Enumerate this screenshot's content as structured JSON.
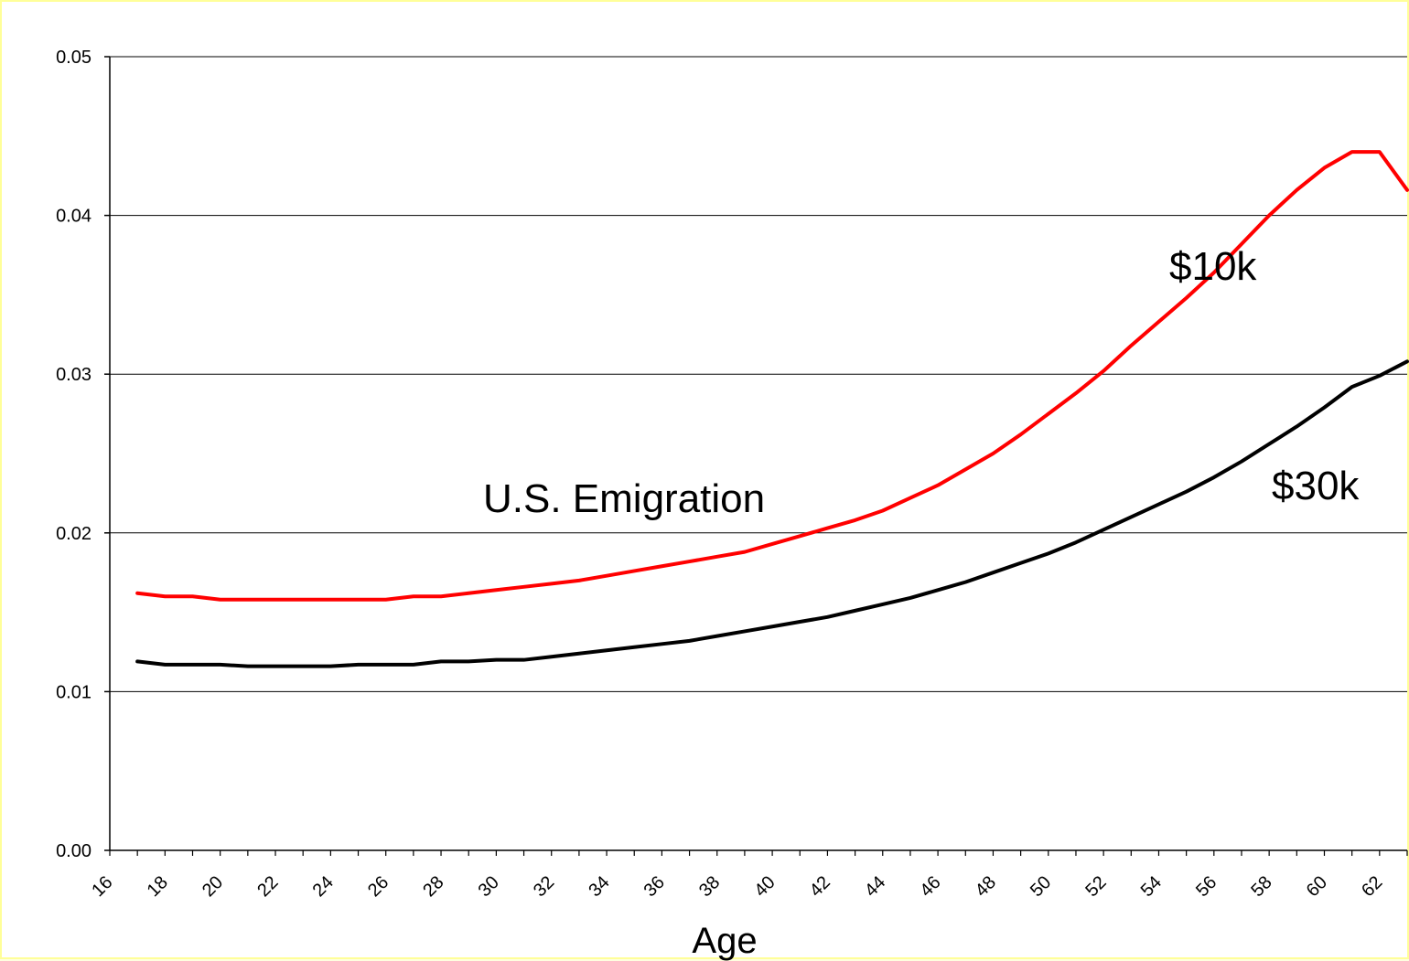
{
  "chart_data": {
    "type": "line",
    "title": "",
    "xlabel": "Age",
    "ylabel": "",
    "ylim": [
      0,
      0.05
    ],
    "yticks": [
      "0.00",
      "0.01",
      "0.02",
      "0.03",
      "0.04",
      "0.05"
    ],
    "xticks": [
      "16",
      "18",
      "20",
      "22",
      "24",
      "26",
      "28",
      "30",
      "32",
      "34",
      "36",
      "38",
      "40",
      "42",
      "44",
      "46",
      "48",
      "50",
      "52",
      "54",
      "56",
      "58",
      "60",
      "62"
    ],
    "grid": "horizontal",
    "annotations": [
      "U.S. Emigration",
      "$10k",
      "$30k"
    ],
    "x": [
      17,
      18,
      19,
      20,
      21,
      22,
      23,
      24,
      25,
      26,
      27,
      28,
      29,
      30,
      31,
      32,
      33,
      34,
      35,
      36,
      37,
      38,
      39,
      40,
      41,
      42,
      43,
      44,
      45,
      46,
      47,
      48,
      49,
      50,
      51,
      52,
      53,
      54,
      55,
      56,
      57,
      58,
      59,
      60,
      61,
      62,
      63
    ],
    "series": [
      {
        "name": "$10k",
        "color": "#ff0000",
        "values": [
          0.0162,
          0.016,
          0.016,
          0.0158,
          0.0158,
          0.0158,
          0.0158,
          0.0158,
          0.0158,
          0.0158,
          0.016,
          0.016,
          0.0162,
          0.0164,
          0.0166,
          0.0168,
          0.017,
          0.0173,
          0.0176,
          0.0179,
          0.0182,
          0.0185,
          0.0188,
          0.0193,
          0.0198,
          0.0203,
          0.0208,
          0.0214,
          0.0222,
          0.023,
          0.024,
          0.025,
          0.0262,
          0.0275,
          0.0288,
          0.0302,
          0.0318,
          0.0333,
          0.0348,
          0.0364,
          0.0382,
          0.04,
          0.0416,
          0.043,
          0.044,
          0.044,
          0.0416
        ]
      },
      {
        "name": "$30k",
        "color": "#000000",
        "values": [
          0.0119,
          0.0117,
          0.0117,
          0.0117,
          0.0116,
          0.0116,
          0.0116,
          0.0116,
          0.0117,
          0.0117,
          0.0117,
          0.0119,
          0.0119,
          0.012,
          0.012,
          0.0122,
          0.0124,
          0.0126,
          0.0128,
          0.013,
          0.0132,
          0.0135,
          0.0138,
          0.0141,
          0.0144,
          0.0147,
          0.0151,
          0.0155,
          0.0159,
          0.0164,
          0.0169,
          0.0175,
          0.0181,
          0.0187,
          0.0194,
          0.0202,
          0.021,
          0.0218,
          0.0226,
          0.0235,
          0.0245,
          0.0256,
          0.0267,
          0.0279,
          0.0292,
          0.0299,
          0.0308
        ]
      }
    ]
  }
}
